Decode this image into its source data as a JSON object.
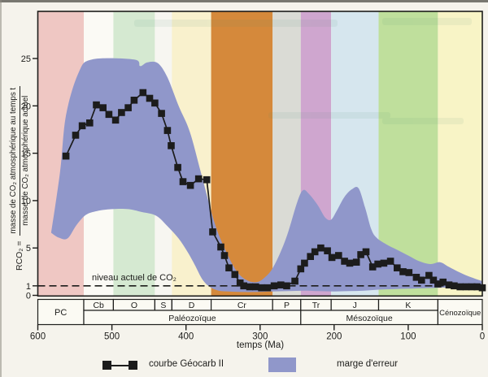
{
  "page": {
    "background": "#f5f3ec",
    "scan_edge_top_color": "#787770",
    "scan_edge_left_color": "#8d8b82",
    "ink_color": "#1d1d1b"
  },
  "chart_data": {
    "type": "line",
    "xlabel": "temps (Ma)",
    "ylabel_prefix": "RCO₂ =",
    "ylabel_numerator": "masse de CO₂ atmosphérique au temps t",
    "ylabel_denominator": "masse de CO₂ atmosphérique actuel",
    "x_axis": {
      "min": 0,
      "max": 600,
      "reversed": true,
      "ticks": [
        600,
        500,
        400,
        300,
        200,
        100,
        0
      ]
    },
    "y_axis": {
      "min": 0,
      "max": 30,
      "ticks": [
        25,
        20,
        15,
        10,
        5,
        1,
        0
      ]
    },
    "reference_line": {
      "value": 1,
      "label": "niveau actuel de CO₂"
    },
    "series": [
      {
        "name": "courbe Géocarb II",
        "color": "#1c1c1c",
        "marker": "square",
        "points": [
          [
            562,
            14.7
          ],
          [
            549,
            16.9
          ],
          [
            540,
            17.9
          ],
          [
            530,
            18.2
          ],
          [
            521,
            20.1
          ],
          [
            512,
            19.8
          ],
          [
            504,
            19.1
          ],
          [
            495,
            18.5
          ],
          [
            487,
            19.3
          ],
          [
            478,
            19.8
          ],
          [
            470,
            20.6
          ],
          [
            458,
            21.4
          ],
          [
            449,
            20.8
          ],
          [
            442,
            20.3
          ],
          [
            433,
            19.2
          ],
          [
            425,
            17.4
          ],
          [
            420,
            15.8
          ],
          [
            411,
            13.5
          ],
          [
            404,
            12.0
          ],
          [
            394,
            11.6
          ],
          [
            383,
            12.3
          ],
          [
            372,
            12.2
          ],
          [
            364,
            6.7
          ],
          [
            353,
            5.1
          ],
          [
            348,
            4.2
          ],
          [
            342,
            2.9
          ],
          [
            334,
            2.2
          ],
          [
            327,
            1.3
          ],
          [
            322,
            1.0
          ],
          [
            314,
            0.9
          ],
          [
            306,
            0.9
          ],
          [
            298,
            0.8
          ],
          [
            290,
            0.8
          ],
          [
            281,
            1.0
          ],
          [
            272,
            1.1
          ],
          [
            264,
            1.0
          ],
          [
            253,
            1.5
          ],
          [
            245,
            2.8
          ],
          [
            240,
            3.4
          ],
          [
            232,
            4.1
          ],
          [
            226,
            4.6
          ],
          [
            218,
            5.0
          ],
          [
            209,
            4.7
          ],
          [
            203,
            4.0
          ],
          [
            194,
            4.2
          ],
          [
            186,
            3.6
          ],
          [
            179,
            3.4
          ],
          [
            170,
            3.5
          ],
          [
            164,
            4.3
          ],
          [
            157,
            4.6
          ],
          [
            148,
            3.0
          ],
          [
            141,
            3.3
          ],
          [
            133,
            3.4
          ],
          [
            124,
            3.6
          ],
          [
            115,
            2.9
          ],
          [
            107,
            2.5
          ],
          [
            99,
            2.4
          ],
          [
            89,
            1.9
          ],
          [
            82,
            1.6
          ],
          [
            72,
            2.1
          ],
          [
            66,
            1.6
          ],
          [
            60,
            1.2
          ],
          [
            53,
            1.4
          ],
          [
            45,
            1.1
          ],
          [
            38,
            1.0
          ],
          [
            30,
            0.9
          ],
          [
            22,
            0.9
          ],
          [
            14,
            0.9
          ],
          [
            7,
            0.9
          ],
          [
            0,
            0.8
          ]
        ]
      }
    ],
    "error_band": {
      "name": "marge d'erreur",
      "color": "#9097ca",
      "upper": [
        [
          582,
          6.6
        ],
        [
          570,
          13.0
        ],
        [
          562,
          19.0
        ],
        [
          545,
          23.5
        ],
        [
          527,
          24.9
        ],
        [
          470,
          24.9
        ],
        [
          462,
          24.2
        ],
        [
          452,
          24.6
        ],
        [
          438,
          24.5
        ],
        [
          425,
          23.0
        ],
        [
          410,
          20.0
        ],
        [
          395,
          17.3
        ],
        [
          380,
          13.0
        ],
        [
          362,
          7.8
        ],
        [
          348,
          5.0
        ],
        [
          332,
          2.6
        ],
        [
          318,
          1.6
        ],
        [
          305,
          1.4
        ],
        [
          295,
          1.8
        ],
        [
          282,
          3.0
        ],
        [
          265,
          6.0
        ],
        [
          250,
          9.8
        ],
        [
          242,
          11.1
        ],
        [
          234,
          10.7
        ],
        [
          222,
          9.5
        ],
        [
          212,
          8.2
        ],
        [
          204,
          8.0
        ],
        [
          196,
          9.0
        ],
        [
          186,
          10.4
        ],
        [
          176,
          11.2
        ],
        [
          167,
          11.3
        ],
        [
          158,
          9.2
        ],
        [
          150,
          7.0
        ],
        [
          143,
          6.1
        ],
        [
          130,
          5.4
        ],
        [
          115,
          4.8
        ],
        [
          100,
          4.2
        ],
        [
          85,
          3.6
        ],
        [
          70,
          3.3
        ],
        [
          57,
          3.5
        ],
        [
          45,
          3.0
        ],
        [
          30,
          2.4
        ],
        [
          15,
          1.9
        ],
        [
          0,
          1.5
        ]
      ],
      "lower": [
        [
          582,
          6.6
        ],
        [
          572,
          6.1
        ],
        [
          560,
          6.0
        ],
        [
          548,
          7.4
        ],
        [
          535,
          8.5
        ],
        [
          520,
          8.9
        ],
        [
          500,
          9.1
        ],
        [
          478,
          9.1
        ],
        [
          460,
          8.8
        ],
        [
          440,
          8.4
        ],
        [
          425,
          7.3
        ],
        [
          410,
          6.0
        ],
        [
          398,
          4.6
        ],
        [
          388,
          3.2
        ],
        [
          378,
          1.7
        ],
        [
          368,
          0.9
        ],
        [
          356,
          0.5
        ],
        [
          342,
          0.4
        ],
        [
          325,
          0.35
        ],
        [
          305,
          0.35
        ],
        [
          285,
          0.4
        ],
        [
          262,
          0.45
        ],
        [
          240,
          0.5
        ],
        [
          222,
          0.45
        ],
        [
          200,
          0.4
        ],
        [
          180,
          0.45
        ],
        [
          160,
          0.5
        ],
        [
          140,
          0.6
        ],
        [
          120,
          0.65
        ],
        [
          100,
          0.7
        ],
        [
          80,
          0.75
        ],
        [
          60,
          0.8
        ],
        [
          40,
          0.85
        ],
        [
          20,
          0.9
        ],
        [
          0,
          0.95
        ]
      ]
    },
    "periods": [
      {
        "label": "PC",
        "start": 600,
        "end": 538,
        "band_color": "#efc7c3",
        "tall": true
      },
      {
        "label": "Cb",
        "start": 538,
        "end": 498,
        "band_color": "#fbfaf5",
        "tall": false
      },
      {
        "label": "O",
        "start": 498,
        "end": 442,
        "band_color": "#d5e9d1",
        "tall": false
      },
      {
        "label": "S",
        "start": 442,
        "end": 419,
        "band_color": "#f7f6f1",
        "tall": false
      },
      {
        "label": "D",
        "start": 419,
        "end": 366,
        "band_color": "#f9f1cd",
        "tall": false
      },
      {
        "label": "Cr",
        "start": 366,
        "end": 283,
        "band_color": "#d5893b",
        "tall": false
      },
      {
        "label": "P",
        "start": 283,
        "end": 245,
        "band_color": "#dadbd5",
        "tall": false
      },
      {
        "label": "Tr",
        "start": 245,
        "end": 204,
        "band_color": "#cfa6cf",
        "tall": false
      },
      {
        "label": "J",
        "start": 204,
        "end": 140,
        "band_color": "#d6e6ee",
        "tall": false
      },
      {
        "label": "K",
        "start": 140,
        "end": 60,
        "band_color": "#bfdf9c",
        "tall": false
      },
      {
        "label": "Cénozoïque",
        "start": 60,
        "end": 0,
        "band_color": "#f8f4c6",
        "tall": true
      }
    ],
    "eras": [
      {
        "label": "Paléozoïque",
        "start": 538,
        "end": 245
      },
      {
        "label": "Mésozoïque",
        "start": 245,
        "end": 60
      }
    ],
    "legend": [
      {
        "label": "courbe Géocarb II",
        "type": "marker-line"
      },
      {
        "label": "marge d'erreur",
        "type": "band"
      }
    ]
  }
}
